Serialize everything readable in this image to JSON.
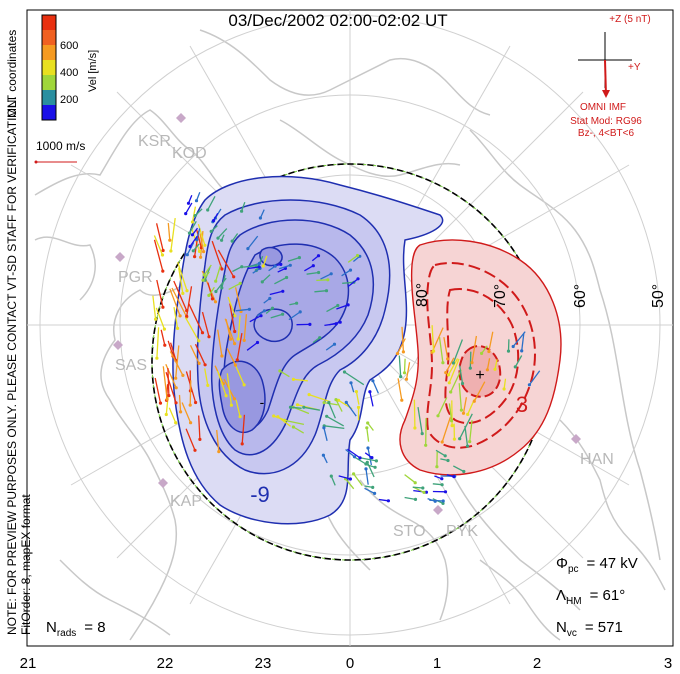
{
  "title": "03/Dec/2002 02:00-02:02 UT",
  "coords_label": "MLT coordinates",
  "colorbar": {
    "label": "Vel [m/s]",
    "ticks": [
      "200",
      "400",
      "600"
    ],
    "colors": [
      "#1a10e8",
      "#2a6fc8",
      "#3fa37a",
      "#9fd63a",
      "#e8e020",
      "#f59a20",
      "#e83010"
    ]
  },
  "vector_scale_label": "1000 m/s",
  "side_note": "NOTE: FOR PREVIEW PURPOSES ONLY. PLEASE CONTACT VT-SD STAFF FOR VERIFICATION.",
  "fit_label": "FitOrder: 8, mapEX format",
  "imf": {
    "z_label": "+Z (5 nT)",
    "y_label": "+Y",
    "source": "OMNI IMF",
    "model": "Stat Mod: RG96",
    "condition": "Bz-, 4<BT<6"
  },
  "lat_labels": [
    "80°",
    "70°",
    "60°",
    "50°"
  ],
  "contour_labels": [
    "-9",
    "3"
  ],
  "stations": [
    "KSR",
    "KOD",
    "PGR",
    "SAS",
    "KAP",
    "STO",
    "PYK",
    "HAN"
  ],
  "stats": {
    "phi_label": "Φ",
    "phi_sub": "pc",
    "phi_value": "= 47 kV",
    "lambda_label": "Λ",
    "lambda_sub": "HM",
    "lambda_value": "= 61°",
    "nvc_label": "N",
    "nvc_sub": "vc",
    "nvc_value": "= 571",
    "nrads_label": "N",
    "nrads_sub": "rads",
    "nrads_value": "= 8"
  },
  "mlt_ticks": [
    "21",
    "22",
    "23",
    "0",
    "1",
    "2",
    "3"
  ],
  "colors": {
    "neg_fill": "#b8b8ec",
    "neg_line": "#1f2fb0",
    "pos_fill": "#f2c4c4",
    "pos_line": "#d01a1a",
    "coast": "#c8c8c8",
    "imf": "#d01a1a"
  }
}
